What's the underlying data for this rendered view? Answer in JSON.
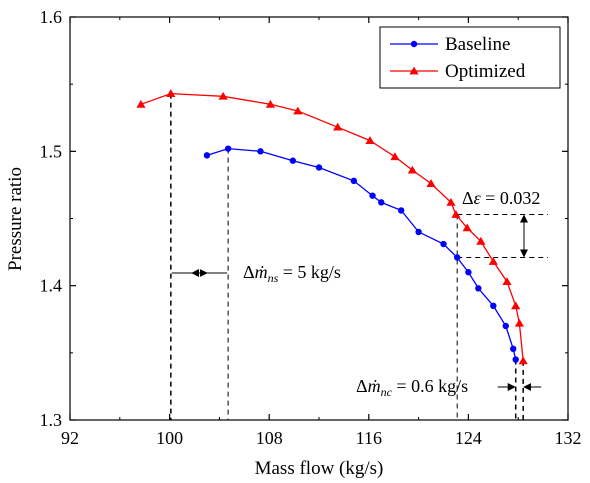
{
  "chart_data": {
    "type": "line",
    "xlabel": "Mass flow (kg/s)",
    "ylabel": "Pressure ratio",
    "xlim": [
      92,
      132
    ],
    "ylim": [
      1.3,
      1.6
    ],
    "xticks": [
      "92",
      "100",
      "108",
      "116",
      "124",
      "132"
    ],
    "yticks": [
      "1.3",
      "1.4",
      "1.5",
      "1.6"
    ],
    "legend_position": "top-right",
    "grid": false,
    "series": [
      {
        "name": "Baseline",
        "color": "#0000ff",
        "marker": "circle",
        "x": [
          103.0,
          104.7,
          107.3,
          109.9,
          112.0,
          114.8,
          116.3,
          117.0,
          118.6,
          120.0,
          122.0,
          123.1,
          124.0,
          124.8,
          126.0,
          127.0,
          127.6,
          127.8
        ],
        "y": [
          1.497,
          1.502,
          1.5,
          1.493,
          1.488,
          1.478,
          1.467,
          1.462,
          1.456,
          1.44,
          1.431,
          1.421,
          1.41,
          1.398,
          1.385,
          1.37,
          1.353,
          1.345
        ]
      },
      {
        "name": "Optimized",
        "color": "#ff0000",
        "marker": "triangle",
        "x": [
          97.7,
          100.1,
          104.3,
          108.1,
          110.3,
          113.5,
          116.1,
          118.1,
          119.5,
          121.0,
          122.6,
          123.0,
          123.9,
          125.0,
          126.0,
          127.1,
          127.8,
          128.1,
          128.4
        ],
        "y": [
          1.535,
          1.543,
          1.541,
          1.535,
          1.53,
          1.518,
          1.508,
          1.496,
          1.486,
          1.476,
          1.462,
          1.453,
          1.443,
          1.433,
          1.418,
          1.403,
          1.385,
          1.372,
          1.344
        ]
      }
    ],
    "annotations": {
      "surge_margin_label": "5 kg/s",
      "choke_margin_label": "0.6 kg/s",
      "pressure_ratio_gain_label": "0.032"
    }
  }
}
